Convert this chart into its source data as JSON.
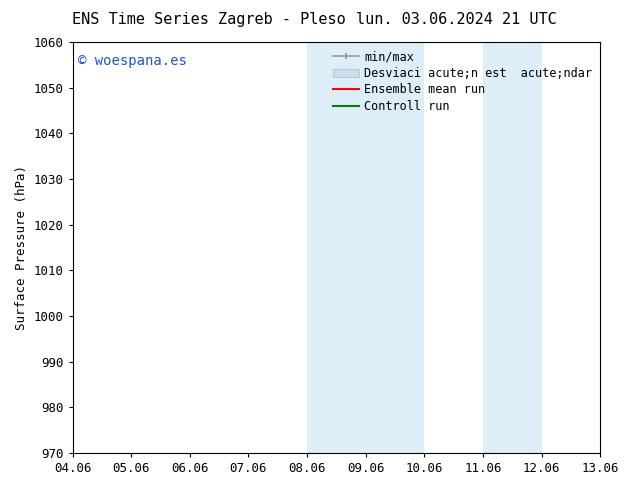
{
  "title_left": "ENS Time Series Zagreb - Pleso",
  "title_right": "lun. 03.06.2024 21 UTC",
  "ylabel": "Surface Pressure (hPa)",
  "ylim": [
    970,
    1060
  ],
  "yticks": [
    970,
    980,
    990,
    1000,
    1010,
    1020,
    1030,
    1040,
    1050,
    1060
  ],
  "xtick_labels": [
    "04.06",
    "05.06",
    "06.06",
    "07.06",
    "08.06",
    "09.06",
    "10.06",
    "11.06",
    "12.06",
    "13.06"
  ],
  "xtick_positions": [
    0,
    1,
    2,
    3,
    4,
    5,
    6,
    7,
    8,
    9
  ],
  "xlim": [
    0,
    9
  ],
  "shaded_regions": [
    {
      "x_start": 4,
      "x_end": 6
    },
    {
      "x_start": 7,
      "x_end": 8
    }
  ],
  "shaded_color": "#ddeef8",
  "background_color": "#ffffff",
  "watermark_text": "© woespana.es",
  "watermark_color": "#2255cc",
  "legend_label_minmax": "min/max",
  "legend_label_std": "Desviaci acute;n est  acute;ndar",
  "legend_label_ens": "Ensemble mean run",
  "legend_label_ctrl": "Controll run",
  "legend_color_minmax": "#999999",
  "legend_color_std": "#ccddee",
  "legend_color_ens": "red",
  "legend_color_ctrl": "green",
  "font_size": 9,
  "title_font_size": 11,
  "tick_font_size": 9
}
